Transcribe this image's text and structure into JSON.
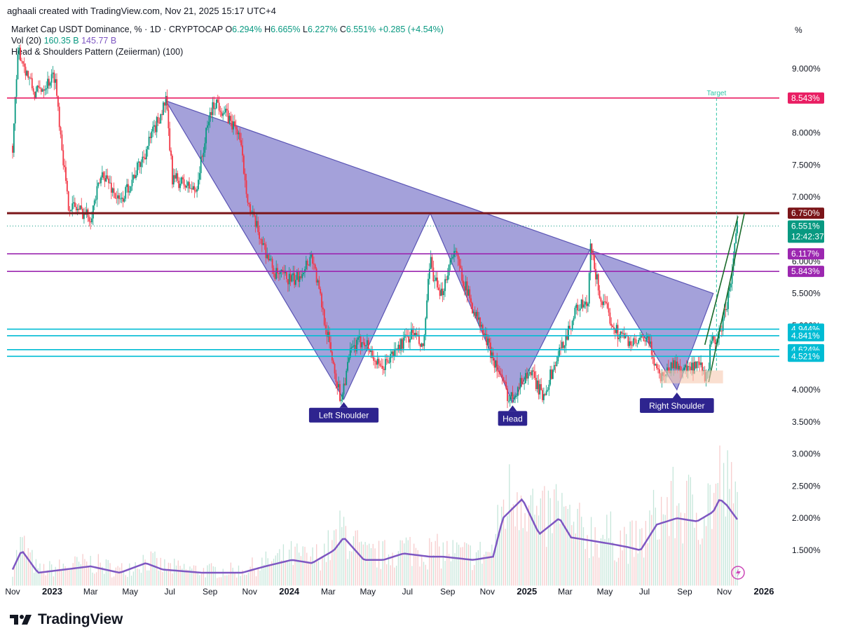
{
  "header": {
    "credit": "aghaali created with TradingView.com, Nov 21, 2025 15:17 UTC+4",
    "symbol": "Market Cap USDT Dominance, % · 1D · CRYPTOCAP",
    "o_label": "O",
    "o_val": "6.294%",
    "h_label": "H",
    "h_val": "6.665%",
    "l_label": "L",
    "l_val": "6.227%",
    "c_label": "C",
    "c_val": "6.551%",
    "change": "+0.285 (+4.54%)",
    "vol_label": "Vol (20)",
    "vol_val1": "160.35 B",
    "vol_val2": "145.77 B",
    "indicator": "Head & Shoulders Pattern (Zeiierman) (100)",
    "percent_sign": "%"
  },
  "footer": {
    "brand": "TradingView"
  },
  "colors": {
    "up": "#089981",
    "down": "#f23645",
    "pattern_fill": "#8b86cf",
    "neckline": "#7b1519",
    "purple": "#9c27b0",
    "cyan": "#00bcd4",
    "target": "#e91e63",
    "volume_ma": "#7e57c2",
    "label_bg": "#2e248f"
  },
  "chart_data": {
    "type": "candlestick",
    "title": "Market Cap USDT Dominance, %",
    "ylabel": "%",
    "ylim": [
      0.9,
      9.6
    ],
    "yaxis_ticks": [
      "9.000%",
      "8.000%",
      "7.500%",
      "7.000%",
      "6.000%",
      "5.500%",
      "5.000%",
      "4.000%",
      "3.500%",
      "3.000%",
      "2.500%",
      "2.000%",
      "1.500%"
    ],
    "xaxis_ticks": [
      "Nov",
      "2023",
      "Mar",
      "May",
      "Jul",
      "Sep",
      "Nov",
      "2024",
      "Mar",
      "May",
      "Jul",
      "Sep",
      "Nov",
      "2025",
      "Mar",
      "May",
      "Jul",
      "Sep",
      "Nov",
      "2026"
    ],
    "price_path": [
      [
        "2022-11-01",
        7.8
      ],
      [
        "2022-11-10",
        9.3
      ],
      [
        "2022-12-05",
        8.6
      ],
      [
        "2023-01-05",
        8.9
      ],
      [
        "2023-01-25",
        6.9
      ],
      [
        "2023-03-01",
        6.7
      ],
      [
        "2023-03-20",
        7.4
      ],
      [
        "2023-04-15",
        6.9
      ],
      [
        "2023-05-20",
        7.6
      ],
      [
        "2023-06-25",
        8.5
      ],
      [
        "2023-07-05",
        7.3
      ],
      [
        "2023-08-10",
        7.1
      ],
      [
        "2023-09-01",
        8.3
      ],
      [
        "2023-09-10",
        8.5
      ],
      [
        "2023-10-15",
        8.0
      ],
      [
        "2023-11-01",
        6.8
      ],
      [
        "2023-12-10",
        5.8
      ],
      [
        "2024-01-10",
        5.7
      ],
      [
        "2024-02-05",
        6.1
      ],
      [
        "2024-03-01",
        4.8
      ],
      [
        "2024-03-20",
        3.85
      ],
      [
        "2024-04-05",
        4.6
      ],
      [
        "2024-04-25",
        4.8
      ],
      [
        "2024-05-20",
        4.3
      ],
      [
        "2024-06-20",
        4.7
      ],
      [
        "2024-07-10",
        4.9
      ],
      [
        "2024-07-25",
        4.6
      ],
      [
        "2024-08-05",
        6.0
      ],
      [
        "2024-08-20",
        5.4
      ],
      [
        "2024-09-10",
        6.2
      ],
      [
        "2024-10-05",
        5.4
      ],
      [
        "2024-11-10",
        4.5
      ],
      [
        "2024-12-05",
        3.85
      ],
      [
        "2025-01-05",
        4.3
      ],
      [
        "2025-01-25",
        3.9
      ],
      [
        "2025-02-25",
        4.7
      ],
      [
        "2025-03-20",
        5.3
      ],
      [
        "2025-04-05",
        5.3
      ],
      [
        "2025-04-09",
        6.2
      ],
      [
        "2025-04-25",
        5.4
      ],
      [
        "2025-05-20",
        4.9
      ],
      [
        "2025-06-15",
        4.7
      ],
      [
        "2025-07-05",
        4.8
      ],
      [
        "2025-07-25",
        4.2
      ],
      [
        "2025-08-15",
        4.4
      ],
      [
        "2025-09-05",
        4.3
      ],
      [
        "2025-09-25",
        4.35
      ],
      [
        "2025-10-05",
        4.15
      ],
      [
        "2025-10-11",
        4.7
      ],
      [
        "2025-10-25",
        4.85
      ],
      [
        "2025-11-10",
        5.6
      ],
      [
        "2025-11-21",
        6.55
      ]
    ],
    "pattern": {
      "points": [
        {
          "date": "2023-06-25",
          "value": 8.5
        },
        {
          "date": "2024-03-25",
          "value": 3.85,
          "label": "Left Shoulder"
        },
        {
          "date": "2024-08-05",
          "value": 6.75
        },
        {
          "date": "2024-12-10",
          "value": 3.8,
          "label": "Head"
        },
        {
          "date": "2025-04-09",
          "value": 6.2
        },
        {
          "date": "2025-08-20",
          "value": 4.0,
          "label": "Right Shoulder"
        },
        {
          "date": "2025-10-15",
          "value": 5.5
        }
      ]
    },
    "levels": [
      {
        "value": 8.543,
        "label": "8.543%",
        "color": "#e91e63"
      },
      {
        "value": 6.75,
        "label": "6.750%",
        "color": "#7b1519"
      },
      {
        "value": 6.117,
        "label": "6.117%",
        "color": "#9c27b0"
      },
      {
        "value": 5.843,
        "label": "5.843%",
        "color": "#9c27b0"
      },
      {
        "value": 4.944,
        "label": "4.944%",
        "color": "#00bcd4"
      },
      {
        "value": 4.841,
        "label": "4.841%",
        "color": "#00bcd4"
      },
      {
        "value": 4.624,
        "label": "4.624%",
        "color": "#00bcd4"
      },
      {
        "value": 4.521,
        "label": "4.521%",
        "color": "#00bcd4"
      }
    ],
    "last_price": {
      "value": 6.551,
      "label": "6.551%",
      "countdown": "12:42:37"
    },
    "target": {
      "label": "Target",
      "value": 8.543
    },
    "channel": {
      "start": "2025-10-08",
      "end": "2025-11-21"
    },
    "volume_ma": [
      [
        "2022-11-01",
        1.2
      ],
      [
        "2022-11-15",
        1.5
      ],
      [
        "2022-12-10",
        1.15
      ],
      [
        "2023-01-20",
        1.2
      ],
      [
        "2023-03-01",
        1.25
      ],
      [
        "2023-04-15",
        1.15
      ],
      [
        "2023-05-25",
        1.3
      ],
      [
        "2023-06-20",
        1.2
      ],
      [
        "2023-08-20",
        1.15
      ],
      [
        "2023-10-20",
        1.15
      ],
      [
        "2023-11-25",
        1.25
      ],
      [
        "2024-01-05",
        1.35
      ],
      [
        "2024-02-05",
        1.3
      ],
      [
        "2024-03-10",
        1.5
      ],
      [
        "2024-03-25",
        1.7
      ],
      [
        "2024-04-25",
        1.35
      ],
      [
        "2024-05-25",
        1.35
      ],
      [
        "2024-06-25",
        1.45
      ],
      [
        "2024-08-05",
        1.4
      ],
      [
        "2024-08-25",
        1.4
      ],
      [
        "2024-10-10",
        1.35
      ],
      [
        "2024-11-10",
        1.4
      ],
      [
        "2024-11-25",
        2.0
      ],
      [
        "2024-12-15",
        2.2
      ],
      [
        "2024-12-25",
        2.3
      ],
      [
        "2025-01-20",
        1.75
      ],
      [
        "2025-02-20",
        2.0
      ],
      [
        "2025-03-10",
        1.7
      ],
      [
        "2025-04-10",
        1.65
      ],
      [
        "2025-05-10",
        1.6
      ],
      [
        "2025-06-05",
        1.55
      ],
      [
        "2025-06-25",
        1.5
      ],
      [
        "2025-07-20",
        1.9
      ],
      [
        "2025-08-20",
        2.0
      ],
      [
        "2025-09-20",
        1.95
      ],
      [
        "2025-10-15",
        2.1
      ],
      [
        "2025-10-25",
        2.3
      ],
      [
        "2025-11-05",
        2.2
      ],
      [
        "2025-11-21",
        1.98
      ]
    ]
  }
}
